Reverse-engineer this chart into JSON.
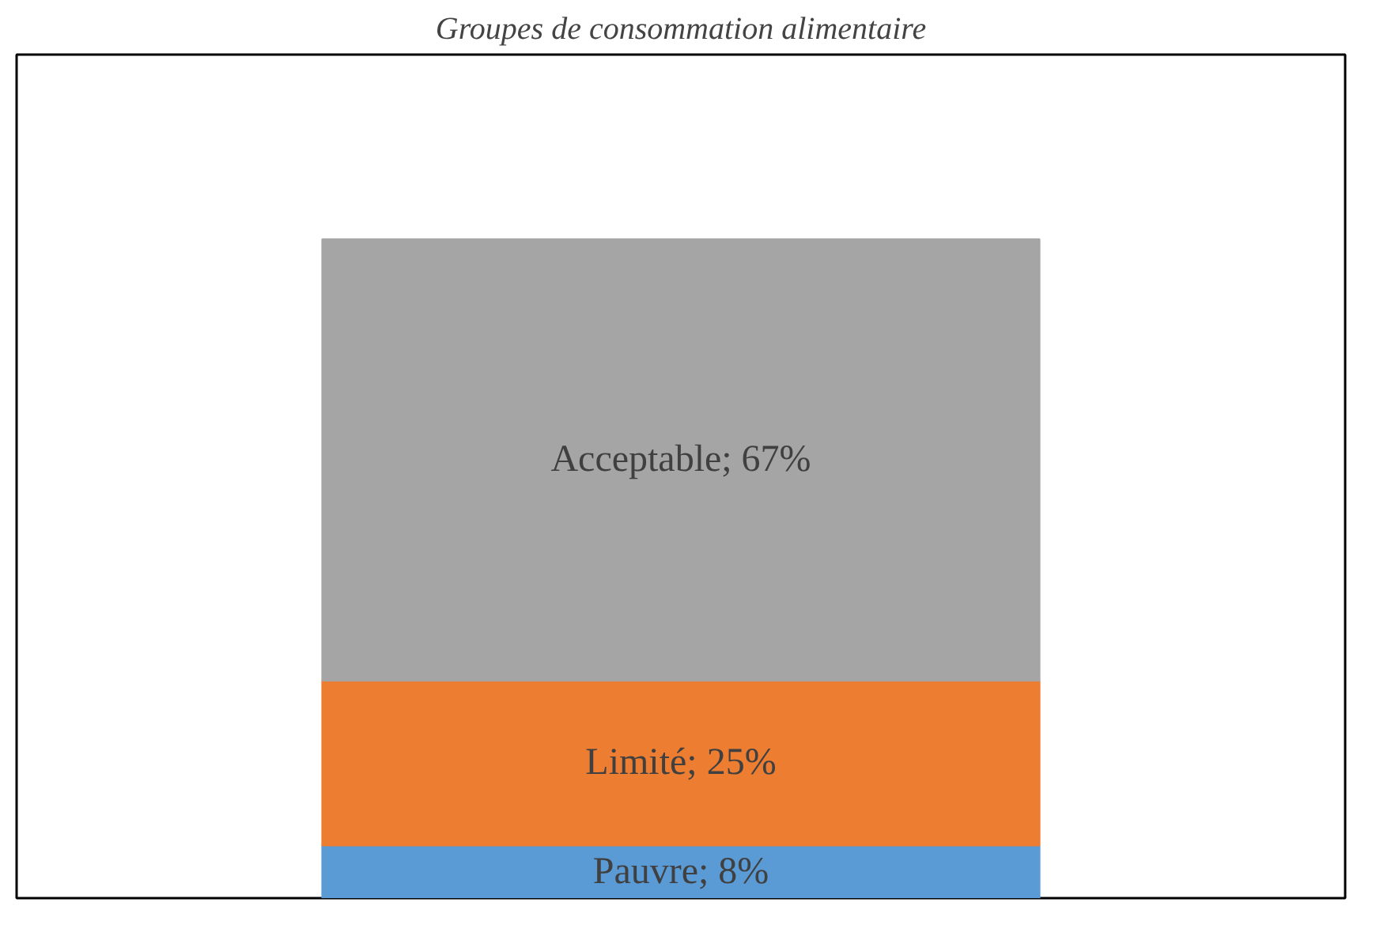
{
  "chart_data": {
    "type": "bar",
    "title": "Groupes de consommation alimentaire",
    "categories": [
      null
    ],
    "stacked": true,
    "series": [
      {
        "color": "#5b9bd5",
        "values": [
          8
        ],
        "value_labels": [
          "Pauvre; 8%"
        ]
      },
      {
        "color": "#ed7d31",
        "values": [
          25
        ],
        "value_labels": [
          "Limité; 25%"
        ]
      },
      {
        "color": "#a5a5a5",
        "values": [
          67
        ],
        "value_labels": [
          "Acceptable; 67%"
        ]
      }
    ]
  }
}
